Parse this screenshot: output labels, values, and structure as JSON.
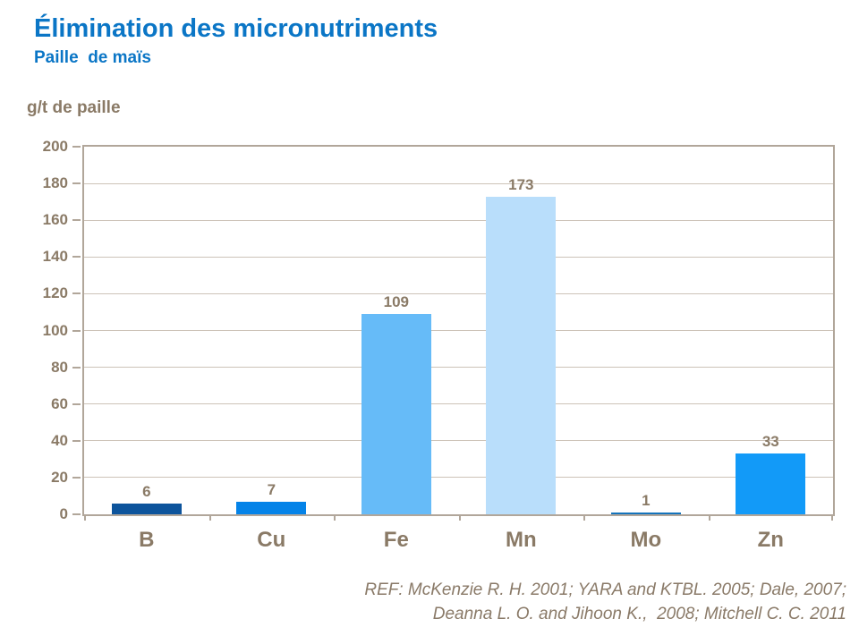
{
  "chart_data": {
    "type": "bar",
    "title": "Élimination des micronutriments",
    "subtitle": "Paille  de maïs",
    "ylabel": "g/t de paille",
    "xlabel": "",
    "categories": [
      "B",
      "Cu",
      "Fe",
      "Mn",
      "Mo",
      "Zn"
    ],
    "values": [
      6,
      7,
      109,
      173,
      1,
      33
    ],
    "bar_colors": [
      "#0d549c",
      "#0483e8",
      "#66bbf8",
      "#b9defb",
      "#1474bc",
      "#129af8"
    ],
    "ylim": [
      0,
      200
    ],
    "ytick_step": 20,
    "grid": true,
    "legend": "none"
  },
  "footer": {
    "ref_line1": "REF: McKenzie R. H. 2001; YARA and KTBL. 2005; Dale, 2007;",
    "ref_line2": "Deanna L. O. and Jihoon K.,  2008; Mitchell C. C. 2011"
  },
  "colors": {
    "title_blue": "#0b76c6",
    "label_brown": "#8a7a66",
    "grid_line": "#cdc3b8",
    "axis_border": "#b1a69a"
  }
}
